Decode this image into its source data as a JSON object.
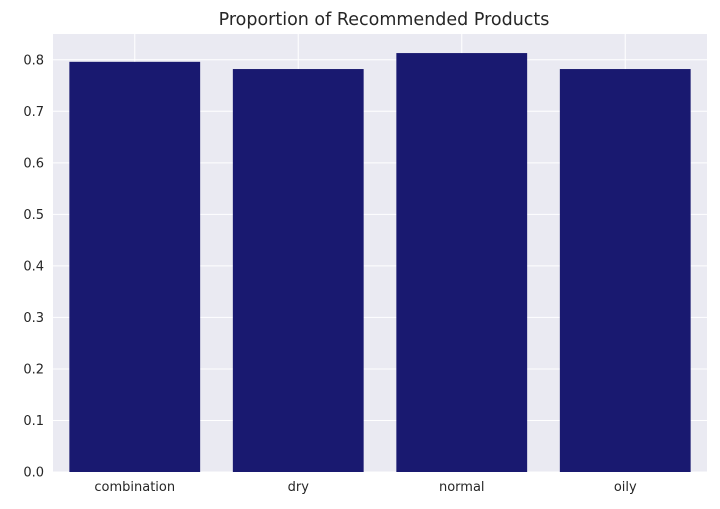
{
  "chart_data": {
    "type": "bar",
    "title": "Proportion of Recommended Products",
    "xlabel": "",
    "ylabel": "",
    "categories": [
      "combination",
      "dry",
      "normal",
      "oily"
    ],
    "values": [
      0.796,
      0.782,
      0.813,
      0.782
    ],
    "ylim": [
      0,
      0.85
    ],
    "yticks": [
      0.0,
      0.1,
      0.2,
      0.3,
      0.4,
      0.5,
      0.6,
      0.7,
      0.8
    ],
    "ytick_labels": [
      "0.0",
      "0.1",
      "0.2",
      "0.3",
      "0.4",
      "0.5",
      "0.6",
      "0.7",
      "0.8"
    ],
    "grid": true,
    "legend": "none",
    "colors": {
      "bar": "#191970",
      "plot_background": "#eaeaf2",
      "grid": "#ffffff",
      "text": "#262626"
    }
  }
}
